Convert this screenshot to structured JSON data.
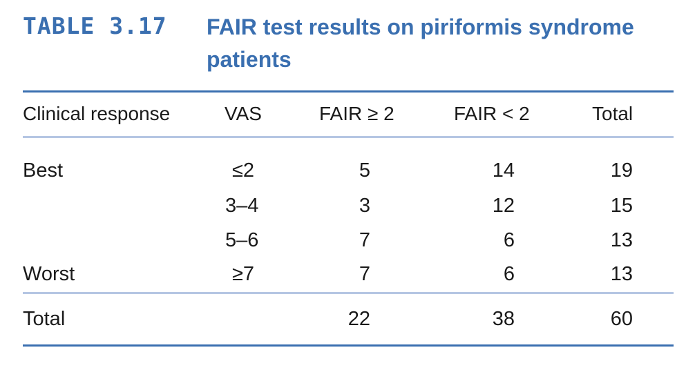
{
  "caption": {
    "table_number": "TABLE 3.17",
    "title": "FAIR test results on piriformis syndrome patients"
  },
  "headers": [
    "Clinical response",
    "VAS",
    "FAIR ≥ 2",
    "FAIR < 2",
    "Total"
  ],
  "rows": [
    {
      "response": "Best",
      "vas": "≤2",
      "fair_ge2": "5",
      "fair_lt2": "14",
      "total": "19"
    },
    {
      "response": "",
      "vas": "3–4",
      "fair_ge2": "3",
      "fair_lt2": "12",
      "total": "15"
    },
    {
      "response": "",
      "vas": "5–6",
      "fair_ge2": "7",
      "fair_lt2": "6",
      "total": "13"
    },
    {
      "response": "Worst",
      "vas": "≥7",
      "fair_ge2": "7",
      "fair_lt2": "6",
      "total": "13"
    }
  ],
  "totals": {
    "label": "Total",
    "fair_ge2": "22",
    "fair_lt2": "38",
    "total": "60"
  },
  "colors": {
    "accent": "#3a6fb0",
    "rule_light": "#b5c6e3",
    "text": "#1a1a1a"
  }
}
